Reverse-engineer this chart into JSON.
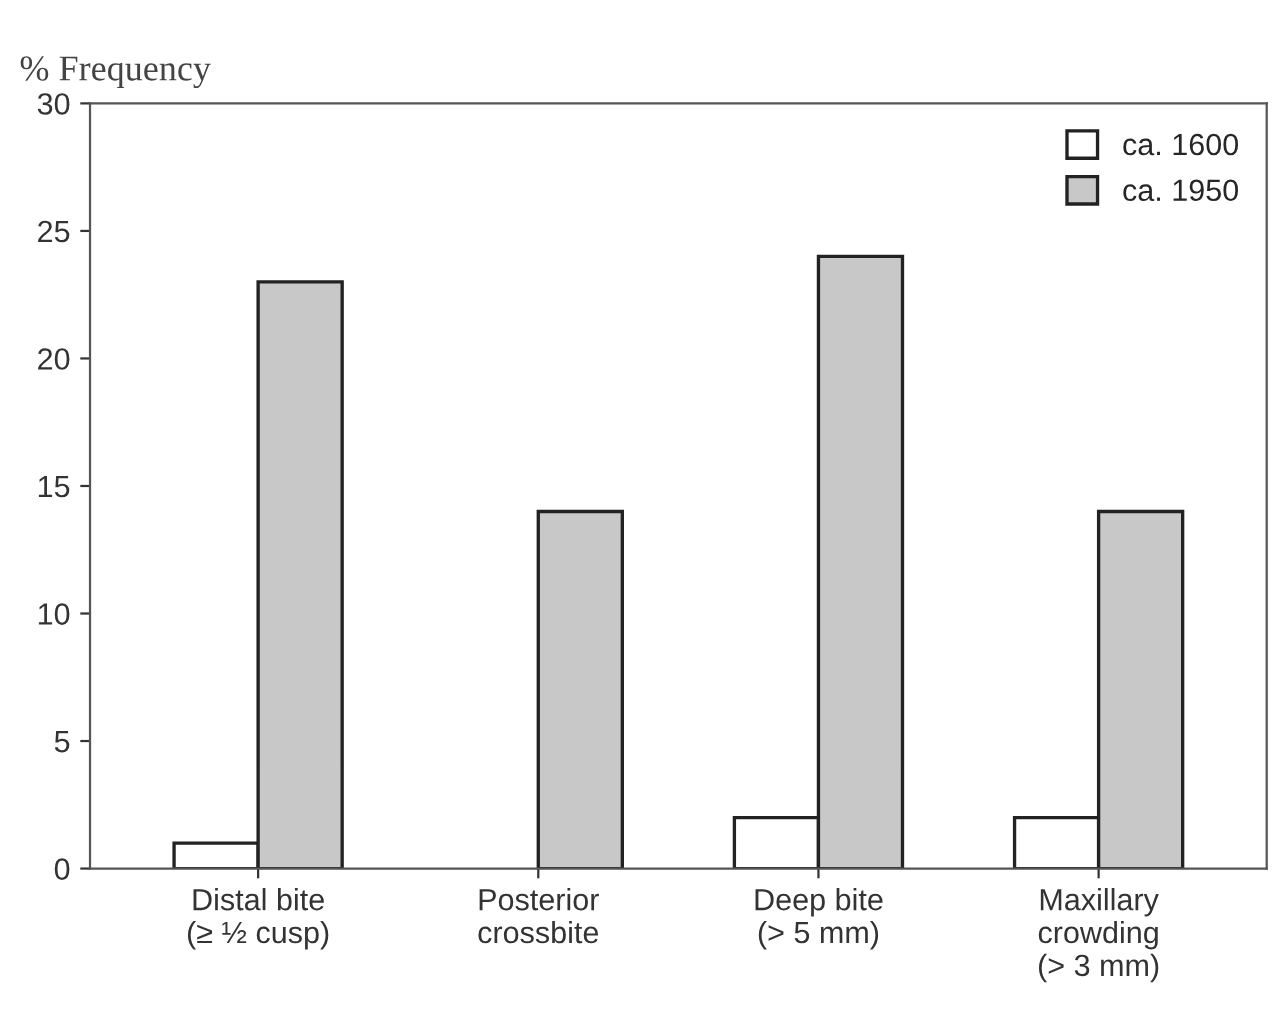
{
  "chart_data": {
    "type": "bar",
    "ylabel": "% Frequency",
    "categories": [
      "Distal bite\n(≥ ½ cusp)",
      "Posterior\ncrossbite",
      "Deep bite\n(> 5 mm)",
      "Maxillary\ncrowding\n(> 3 mm)"
    ],
    "series": [
      {
        "name": "ca. 1600",
        "color": "#ffffff",
        "values": [
          1,
          0,
          2,
          2
        ]
      },
      {
        "name": "ca. 1950",
        "color": "#c8c8c8",
        "values": [
          23,
          14,
          24,
          14
        ]
      }
    ],
    "ylim": [
      0,
      30
    ],
    "yticks": [
      0,
      5,
      10,
      15,
      20,
      25,
      30
    ],
    "grid": false,
    "legend": "top right"
  }
}
